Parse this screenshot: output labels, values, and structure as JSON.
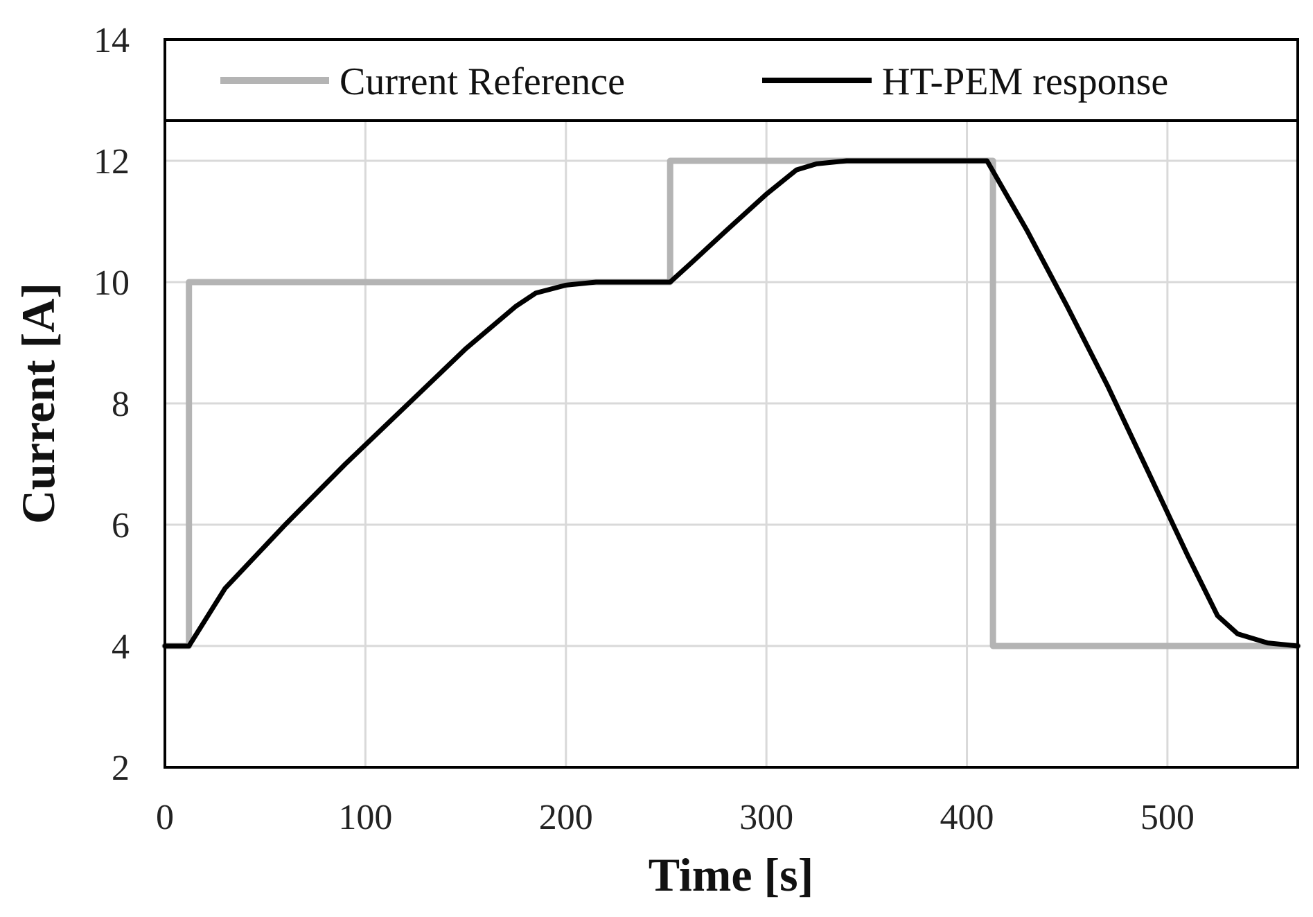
{
  "chart_data": {
    "type": "line",
    "title": "",
    "xlabel": "Time [s]",
    "ylabel": "Current [A]",
    "xlim": [
      0,
      565
    ],
    "ylim": [
      2,
      14
    ],
    "xticks": [
      0,
      100,
      200,
      300,
      400,
      500
    ],
    "yticks": [
      2,
      4,
      6,
      8,
      10,
      12,
      14
    ],
    "grid": true,
    "legend_position": "top",
    "series": [
      {
        "name": "Current Reference",
        "color": "#b4b4b4",
        "x": [
          0,
          12,
          12,
          252,
          252,
          413,
          413,
          565
        ],
        "y": [
          4,
          4,
          10,
          10,
          12,
          12,
          4,
          4
        ]
      },
      {
        "name": "HT-PEM response",
        "color": "#000000",
        "x": [
          0,
          12,
          30,
          60,
          90,
          120,
          150,
          175,
          185,
          200,
          215,
          230,
          245,
          252,
          262,
          280,
          300,
          315,
          325,
          340,
          360,
          380,
          400,
          410,
          430,
          450,
          470,
          490,
          510,
          525,
          535,
          550,
          565
        ],
        "y": [
          4,
          4,
          4.95,
          6.0,
          7.0,
          7.95,
          8.9,
          9.6,
          9.82,
          9.95,
          10.0,
          10.0,
          10.0,
          10.0,
          10.3,
          10.85,
          11.45,
          11.85,
          11.95,
          12.0,
          12.0,
          12.0,
          12.0,
          12.0,
          10.85,
          9.6,
          8.3,
          6.9,
          5.5,
          4.5,
          4.2,
          4.05,
          4.0
        ]
      }
    ]
  }
}
